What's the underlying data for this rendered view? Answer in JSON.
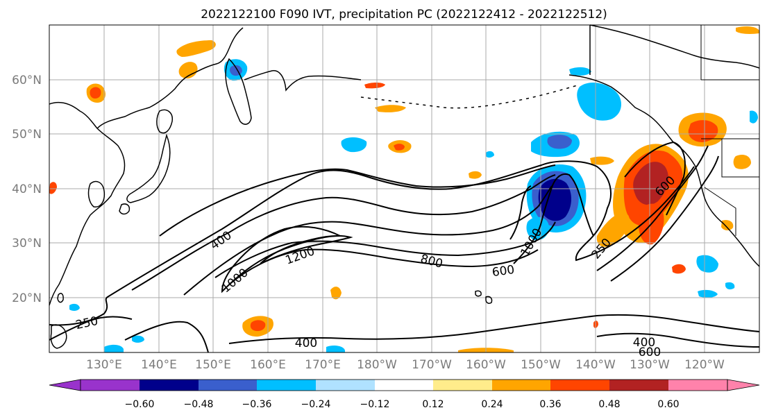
{
  "title": "2022122100 F090 IVT, precipitation PC (2022122412 - 2022122512)",
  "map": {
    "lon_labels": [
      "130°E",
      "140°E",
      "150°E",
      "160°E",
      "170°E",
      "180°W",
      "170°W",
      "160°W",
      "150°W",
      "140°W",
      "130°W",
      "120°W"
    ],
    "lat_labels": [
      "60°N",
      "50°N",
      "40°N",
      "30°N",
      "20°N"
    ],
    "contour_labels": [
      "400",
      "1200",
      "1000",
      "800",
      "600",
      "1000",
      "600",
      "250",
      "250",
      "400",
      "400",
      "600"
    ]
  },
  "colorbar": {
    "tick_labels": [
      "−0.60",
      "−0.48",
      "−0.36",
      "−0.24",
      "−0.12",
      "0.12",
      "0.24",
      "0.36",
      "0.48",
      "0.60"
    ],
    "colors": [
      "#9933cc",
      "#00008b",
      "#3a5fcd",
      "#00bfff",
      "#b0e2ff",
      "#ffffff",
      "#ffec8b",
      "#ffa500",
      "#ff4500",
      "#b22222",
      "#ff82ab"
    ]
  }
}
